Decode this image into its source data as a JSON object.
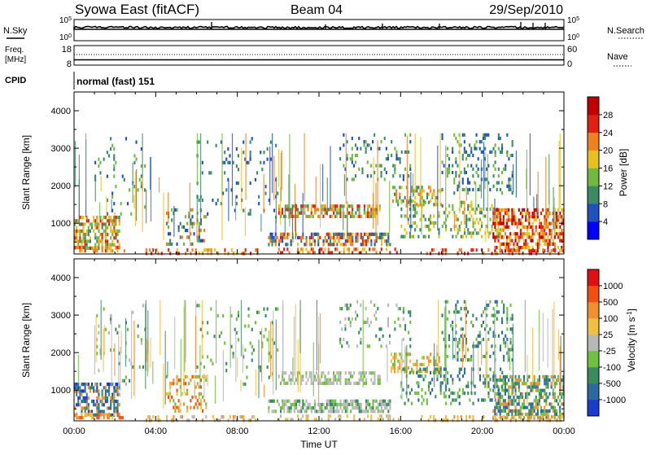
{
  "header": {
    "left": "Syowa East (fitACF)",
    "center": "Beam 04",
    "right": "29/Sep/2010"
  },
  "strip1": {
    "left_label": "N.Sky",
    "right_label": "N.Search",
    "left_ticks": [
      "10^5",
      "10^0"
    ],
    "right_ticks": [
      "10^5",
      "10^0"
    ]
  },
  "strip2": {
    "left_label_1": "Freq.",
    "left_label_2": "[MHz]",
    "right_label": "Nave",
    "left_ticks": [
      "18",
      "8"
    ],
    "right_ticks": [
      "60",
      "0"
    ]
  },
  "cpid": {
    "label": "CPID",
    "value": "normal (fast) 151"
  },
  "chart_data": [
    {
      "type": "heatmap",
      "name": "power",
      "ylabel": "Slant Range [km]",
      "xlabel": "Time UT",
      "ylim": [
        180,
        4500
      ],
      "yticks": [
        "1000",
        "2000",
        "3000",
        "4000"
      ],
      "xticks": [
        "00:00",
        "04:00",
        "08:00",
        "12:00",
        "16:00",
        "20:00",
        "00:00"
      ],
      "colorbar": {
        "label": "Power [dB]",
        "ticks": [
          "4",
          "8",
          "12",
          "16",
          "20",
          "24",
          "28"
        ],
        "colors": [
          "#0000ff",
          "#2050c0",
          "#3a8a66",
          "#70b840",
          "#e8c020",
          "#f08020",
          "#e02010",
          "#c00000"
        ]
      }
    },
    {
      "type": "heatmap",
      "name": "velocity",
      "ylabel": "Slant Range [km]",
      "xlabel": "Time UT",
      "ylim": [
        180,
        4500
      ],
      "yticks": [
        "1000",
        "2000",
        "3000",
        "4000"
      ],
      "xticks": [
        "00:00",
        "04:00",
        "08:00",
        "12:00",
        "16:00",
        "20:00",
        "00:00"
      ],
      "colorbar": {
        "label": "Velocity [m s^-1]",
        "ticks": [
          "1000",
          "500",
          "100",
          "25",
          "-25",
          "-100",
          "-500",
          "-1000"
        ],
        "colors": [
          "#1a3ccc",
          "#2a6aa0",
          "#3a8a60",
          "#70c040",
          "#b8b8b8",
          "#f0c040",
          "#f09030",
          "#f05010",
          "#e01010"
        ]
      }
    }
  ]
}
